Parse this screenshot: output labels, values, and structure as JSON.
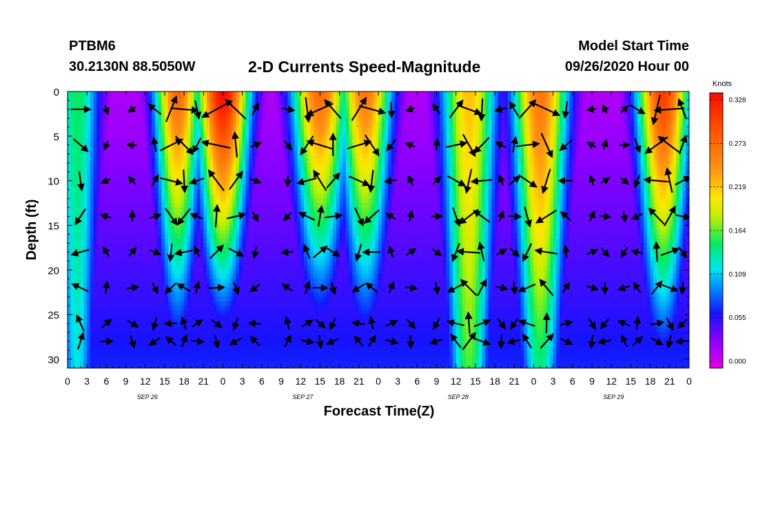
{
  "header": {
    "station": "PTBM6",
    "coordinates": "30.2130N 88.5050W",
    "title": "2-D Currents Speed-Magnitude",
    "model_start_label": "Model Start Time",
    "model_start_value": "09/26/2020 Hour 00"
  },
  "colorbar": {
    "unit": "Knots",
    "ticks": [
      "0.328",
      "0.273",
      "0.219",
      "0.164",
      "0.109",
      "0.055",
      "0.000"
    ]
  },
  "chart_data": {
    "type": "heatmap",
    "title": "2-D Currents Speed-Magnitude",
    "xlabel": "Forecast Time(Z)",
    "ylabel": "Depth (ft)",
    "xlim": [
      0,
      96
    ],
    "ylim": [
      31,
      0
    ],
    "x_ticks": [
      0,
      3,
      6,
      9,
      12,
      15,
      18,
      21,
      24,
      27,
      30,
      33,
      36,
      39,
      42,
      45,
      48,
      51,
      54,
      57,
      60,
      63,
      66,
      69,
      72,
      75,
      78,
      81,
      84,
      87,
      90,
      93,
      96
    ],
    "x_tick_labels": [
      "0",
      "3",
      "6",
      "9",
      "12",
      "15",
      "18",
      "21",
      "0",
      "3",
      "6",
      "9",
      "12",
      "15",
      "18",
      "21",
      "0",
      "3",
      "6",
      "9",
      "12",
      "15",
      "18",
      "21",
      "0",
      "3",
      "6",
      "9",
      "12",
      "15",
      "18",
      "21",
      "0"
    ],
    "day_labels": [
      {
        "x": 12,
        "label": "SEP 26"
      },
      {
        "x": 36,
        "label": "SEP 27"
      },
      {
        "x": 60,
        "label": "SEP 28"
      },
      {
        "x": 84,
        "label": "SEP 29"
      }
    ],
    "y_ticks": [
      0,
      5,
      10,
      15,
      20,
      25,
      30
    ],
    "y_tick_labels": [
      "0",
      "5",
      "10",
      "15",
      "20",
      "25",
      "30"
    ],
    "speed_range_knots": [
      0.0,
      0.328
    ],
    "speed_peaks": [
      {
        "hour": 1.5,
        "surface": 0.15,
        "bottom": 0.12,
        "width_h": 2.5
      },
      {
        "hour": 17,
        "surface": 0.27,
        "bottom": 0.03,
        "width_h": 2.5
      },
      {
        "hour": 24,
        "surface": 0.33,
        "bottom": 0.0,
        "width_h": 2.8
      },
      {
        "hour": 39,
        "surface": 0.27,
        "bottom": 0.0,
        "width_h": 3.0
      },
      {
        "hour": 46,
        "surface": 0.26,
        "bottom": 0.02,
        "width_h": 2.8
      },
      {
        "hour": 62,
        "surface": 0.22,
        "bottom": 0.16,
        "width_h": 3.0
      },
      {
        "hour": 73,
        "surface": 0.26,
        "bottom": 0.14,
        "width_h": 3.0
      },
      {
        "hour": 92,
        "surface": 0.3,
        "bottom": 0.04,
        "width_h": 2.8
      }
    ],
    "vector_hours": [
      2,
      6,
      10,
      13.5,
      16,
      18,
      20,
      23,
      26,
      29,
      34,
      37,
      39,
      41,
      45,
      47,
      50,
      53,
      57,
      60,
      62,
      64,
      67,
      69,
      71,
      74,
      77,
      81,
      83,
      86,
      88,
      91,
      93,
      95
    ],
    "vector_depths": [
      2,
      6,
      10,
      14,
      18,
      22,
      26,
      28
    ]
  }
}
